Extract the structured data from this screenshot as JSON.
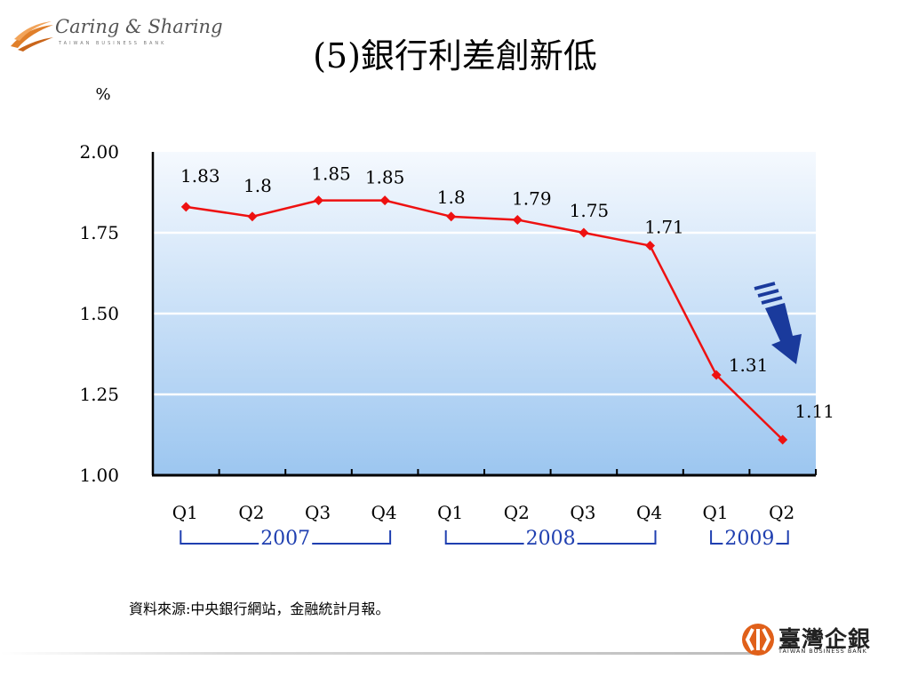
{
  "header": {
    "logo_text": "Caring & Sharing",
    "logo_subtext": "TAIWAN BUSINESS BANK",
    "title": "(5)銀行利差創新低"
  },
  "chart_data": {
    "type": "line",
    "title": "",
    "ylabel": "%",
    "xlabel": "",
    "categories": [
      "Q1",
      "Q2",
      "Q3",
      "Q4",
      "Q1",
      "Q2",
      "Q3",
      "Q4",
      "Q1",
      "Q2"
    ],
    "values": [
      1.83,
      1.8,
      1.85,
      1.85,
      1.8,
      1.79,
      1.75,
      1.71,
      1.31,
      1.11
    ],
    "data_labels": [
      "1.83",
      "1.8",
      "1.85",
      "1.85",
      "1.8",
      "1.79",
      "1.75",
      "1.71",
      "1.31",
      "1.11"
    ],
    "y_ticks": [
      "2.00",
      "1.75",
      "1.50",
      "1.25",
      "1.00"
    ],
    "ylim": [
      1.0,
      2.0
    ],
    "year_groups": [
      {
        "label": "2007",
        "from": 0,
        "to": 3
      },
      {
        "label": "2008",
        "from": 4,
        "to": 7
      },
      {
        "label": "2009",
        "from": 8,
        "to": 9
      }
    ],
    "grid": true,
    "line_color": "#ee1111",
    "annotation": "down-arrow"
  },
  "footer": {
    "source": "資料來源:中央銀行網站，金融統計月報。",
    "logo_text": "臺灣企銀",
    "logo_subtext": "TAIWAN BUSINESS BANK"
  },
  "colors": {
    "line": "#ee1111",
    "arrow": "#1a3a9c",
    "year_labels": "#1f3fb0"
  }
}
